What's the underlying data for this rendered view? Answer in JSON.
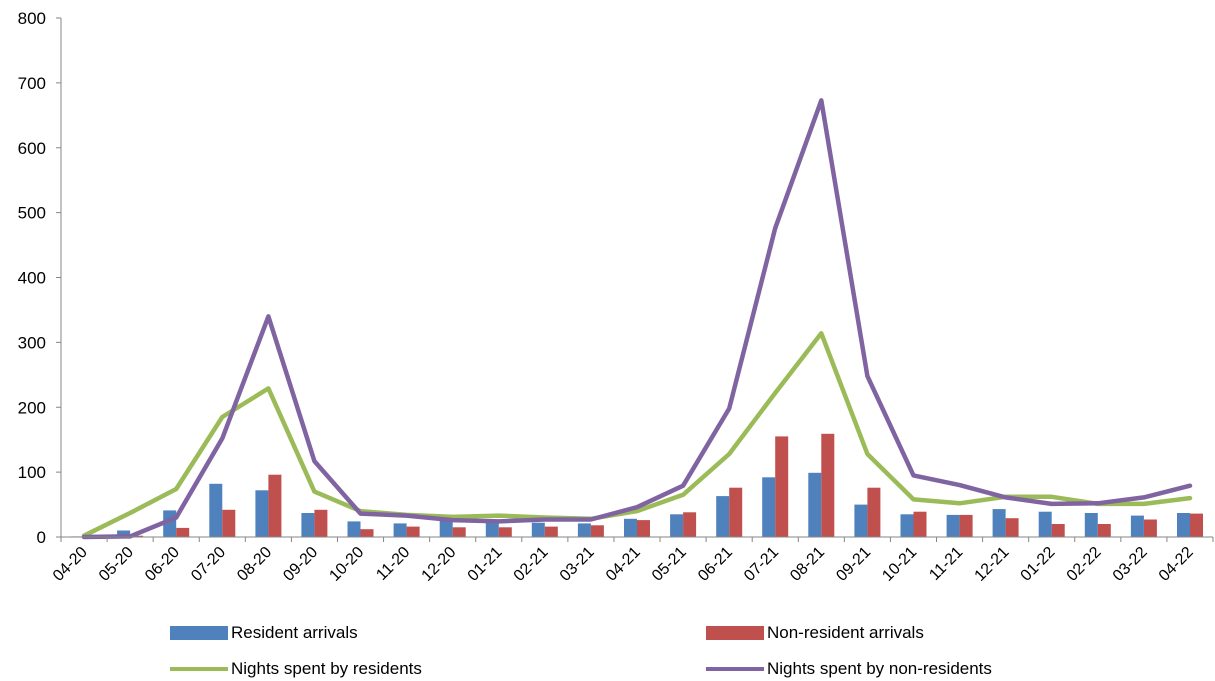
{
  "chart_data": {
    "type": "bar",
    "categories": [
      "04-20",
      "05-20",
      "06-20",
      "07-20",
      "08-20",
      "09-20",
      "10-20",
      "11-20",
      "12-20",
      "01-21",
      "02-21",
      "03-21",
      "04-21",
      "05-21",
      "06-21",
      "07-21",
      "08-21",
      "09-21",
      "10-21",
      "11-21",
      "12-21",
      "01-22",
      "02-22",
      "03-22",
      "04-22"
    ],
    "ylim": [
      0,
      800
    ],
    "yticks": [
      0,
      100,
      200,
      300,
      400,
      500,
      600,
      700,
      800
    ],
    "grid": false,
    "legend_position": "bottom",
    "bar_series": [
      {
        "name": "Resident arrivals",
        "color": "#4F81BD",
        "values": [
          1,
          10,
          41,
          82,
          72,
          37,
          24,
          21,
          25,
          22,
          22,
          21,
          28,
          35,
          63,
          92,
          99,
          50,
          35,
          34,
          43,
          39,
          37,
          33,
          37
        ]
      },
      {
        "name": "Non-resident arrivals",
        "color": "#C0504D",
        "values": [
          0,
          2,
          14,
          42,
          96,
          42,
          12,
          16,
          15,
          15,
          16,
          18,
          26,
          38,
          76,
          155,
          159,
          76,
          39,
          34,
          29,
          20,
          20,
          27,
          36
        ]
      }
    ],
    "line_series": [
      {
        "name": "Nights spent by residents",
        "color": "#9BBB59",
        "values": [
          2,
          37,
          74,
          185,
          229,
          70,
          40,
          34,
          31,
          33,
          30,
          28,
          40,
          65,
          128,
          222,
          314,
          128,
          58,
          52,
          62,
          62,
          51,
          51,
          60
        ]
      },
      {
        "name": "Nights spent by non-residents",
        "color": "#8064A2",
        "values": [
          0,
          1,
          30,
          152,
          340,
          117,
          36,
          33,
          26,
          24,
          27,
          27,
          46,
          79,
          198,
          476,
          673,
          248,
          95,
          80,
          61,
          51,
          52,
          61,
          79
        ]
      }
    ]
  }
}
